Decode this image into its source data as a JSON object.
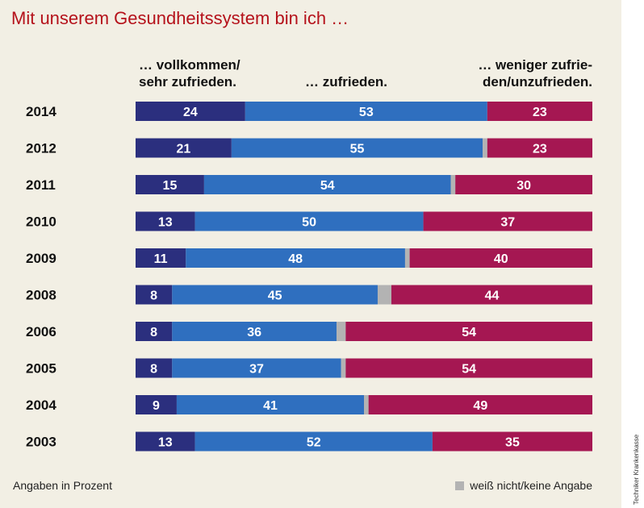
{
  "title": "Mit unserem Gesundheitssystem bin ich …",
  "headers": {
    "left_line1": "… vollkommen/",
    "left_line2": "sehr zufrieden.",
    "middle": "… zufrieden.",
    "right_line1": "… weniger zufrie-",
    "right_line2": "den/unzufrieden."
  },
  "footer": {
    "note": "Angaben in Prozent",
    "legend_gray": "weiß nicht/keine Angabe"
  },
  "source": "Techniker Krankenkasse",
  "colors": {
    "very_satisfied": "#2b2f7e",
    "satisfied": "#2f6fbf",
    "no_answer": "#b3b3b3",
    "dissatisfied": "#a51752",
    "title": "#b5121b",
    "background": "#f2efe4"
  },
  "chart_data": {
    "type": "bar",
    "orientation": "horizontal-stacked-100",
    "unit": "Prozent",
    "categories": [
      "2014",
      "2012",
      "2011",
      "2010",
      "2009",
      "2008",
      "2006",
      "2005",
      "2004",
      "2003"
    ],
    "series": [
      {
        "name": "… vollkommen/sehr zufrieden.",
        "values": [
          24,
          21,
          15,
          13,
          11,
          8,
          8,
          8,
          9,
          13
        ]
      },
      {
        "name": "… zufrieden.",
        "values": [
          53,
          55,
          54,
          50,
          48,
          45,
          36,
          37,
          41,
          52
        ]
      },
      {
        "name": "weiß nicht/keine Angabe",
        "values": [
          0,
          1,
          1,
          0,
          1,
          3,
          2,
          1,
          1,
          0
        ],
        "labeled": false
      },
      {
        "name": "… weniger zufrieden/unzufrieden.",
        "values": [
          23,
          23,
          30,
          37,
          40,
          44,
          54,
          54,
          49,
          35
        ]
      }
    ],
    "xlim": [
      0,
      100
    ]
  }
}
